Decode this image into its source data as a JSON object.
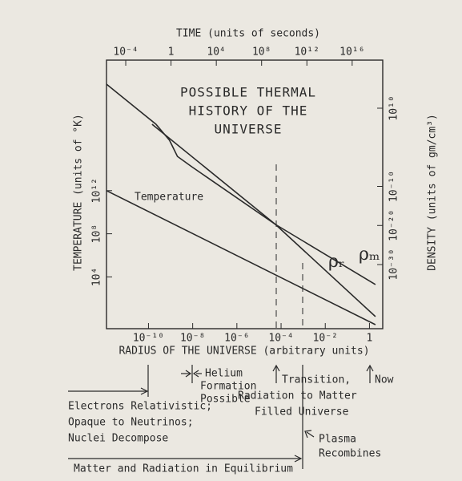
{
  "chart_data": {
    "type": "line",
    "title_lines": [
      "POSSIBLE THERMAL",
      "HISTORY OF THE",
      "UNIVERSE"
    ],
    "x_label": "RADIUS OF THE UNIVERSE (arbitrary units)",
    "x2_label": "TIME (units of seconds)",
    "y_label": "TEMPERATURE (units of °K)",
    "y2_label": "DENSITY (units of gm/cm³)",
    "log_scale": true,
    "xlim": [
      -11.9,
      0.6
    ],
    "xticks": [
      {
        "value": -10,
        "label": "10⁻¹⁰"
      },
      {
        "value": -8,
        "label": "10⁻⁸"
      },
      {
        "value": -6,
        "label": "10⁻⁶"
      },
      {
        "value": -4,
        "label": "10⁻⁴"
      },
      {
        "value": -2,
        "label": "10⁻²"
      },
      {
        "value": 0,
        "label": "1"
      }
    ],
    "x2lim": [
      -5.7,
      18.7
    ],
    "x2ticks": [
      {
        "value": -4,
        "label": "10⁻⁴"
      },
      {
        "value": 0,
        "label": "1"
      },
      {
        "value": 4,
        "label": "10⁴"
      },
      {
        "value": 8,
        "label": "10⁸"
      },
      {
        "value": 12,
        "label": "10¹²"
      },
      {
        "value": 16,
        "label": "10¹⁶"
      }
    ],
    "ylim": [
      -0.8,
      24.1
    ],
    "yticks": [
      {
        "value": 4,
        "label": "10⁴"
      },
      {
        "value": 8,
        "label": "10⁸"
      },
      {
        "value": 12,
        "label": "10¹²"
      }
    ],
    "y2lim": [
      -46.4,
      22.3
    ],
    "y2ticks": [
      {
        "value": 10,
        "label": "10¹⁰"
      },
      {
        "value": -10,
        "label": "10⁻¹⁰"
      },
      {
        "value": -20,
        "label": "10⁻²⁰"
      },
      {
        "value": -30,
        "label": "10⁻³⁰"
      }
    ],
    "series": [
      {
        "name": "Temperature",
        "color": "#2a2a2a",
        "x": [
          -11.9,
          0.27
        ],
        "values": [
          12.0,
          -0.43
        ]
      },
      {
        "name": "ρᵣ",
        "color": "#2a2a2a",
        "axis": "y2",
        "x": [
          -11.9,
          -9.66,
          -9.05,
          -8.69,
          -8.04,
          -4.25,
          0.27
        ],
        "values": [
          16.15,
          5.9,
          1.79,
          -2.32,
          -4.98,
          -19.75,
          -43.3
        ]
      },
      {
        "name": "ρₘ",
        "color": "#2a2a2a",
        "axis": "y2",
        "x": [
          -9.84,
          -4.25,
          0.27
        ],
        "values": [
          5.9,
          -19.75,
          -35.1
        ]
      }
    ]
  },
  "annotations": {
    "electrons": [
      "Electrons Relativistic;",
      "Opaque to Neutrinos;",
      "Nuclei Decompose"
    ],
    "helium": [
      "Helium",
      "Formation",
      "Possible"
    ],
    "transition": [
      "Transition,",
      "Radiation to Matter",
      "Filled Universe"
    ],
    "now": "Now",
    "plasma": [
      "Plasma",
      "Recombines"
    ],
    "equilibrium": "Matter and Radiation in Equilibrium"
  }
}
